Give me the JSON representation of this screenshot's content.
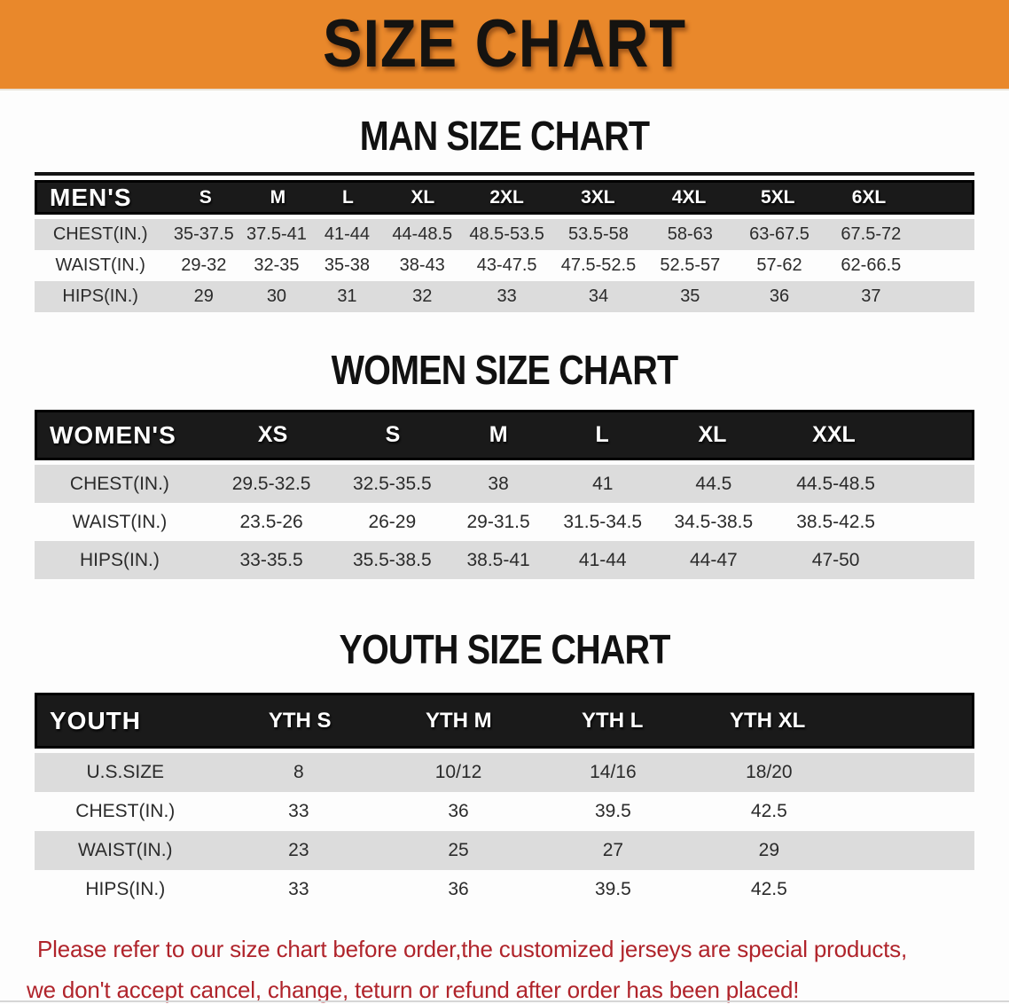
{
  "banner": {
    "title": "SIZE CHART"
  },
  "colors": {
    "banner_bg": "#E9882B",
    "header_bg": "#1a1a1a",
    "row_gray": "#dcdcdc",
    "disclaimer_red": "#b0242b"
  },
  "tables": [
    {
      "heading": "MAN SIZE CHART",
      "header_label": "MEN'S",
      "columns": [
        "S",
        "M",
        "L",
        "XL",
        "2XL",
        "3XL",
        "4XL",
        "5XL",
        "6XL"
      ],
      "rows": [
        {
          "label": "CHEST(IN.)",
          "values": [
            "35-37.5",
            "37.5-41",
            "41-44",
            "44-48.5",
            "48.5-53.5",
            "53.5-58",
            "58-63",
            "63-67.5",
            "67.5-72"
          ]
        },
        {
          "label": "WAIST(IN.)",
          "values": [
            "29-32",
            "32-35",
            "35-38",
            "38-43",
            "43-47.5",
            "47.5-52.5",
            "52.5-57",
            "57-62",
            "62-66.5"
          ]
        },
        {
          "label": "HIPS(IN.)",
          "values": [
            "29",
            "30",
            "31",
            "32",
            "33",
            "34",
            "35",
            "36",
            "37"
          ]
        }
      ]
    },
    {
      "heading": "WOMEN SIZE CHART",
      "header_label": "WOMEN'S",
      "columns": [
        "XS",
        "S",
        "M",
        "L",
        "XL",
        "XXL"
      ],
      "rows": [
        {
          "label": "CHEST(IN.)",
          "values": [
            "29.5-32.5",
            "32.5-35.5",
            "38",
            "41",
            "44.5",
            "44.5-48.5"
          ]
        },
        {
          "label": "WAIST(IN.)",
          "values": [
            "23.5-26",
            "26-29",
            "29-31.5",
            "31.5-34.5",
            "34.5-38.5",
            "38.5-42.5"
          ]
        },
        {
          "label": "HIPS(IN.)",
          "values": [
            "33-35.5",
            "35.5-38.5",
            "38.5-41",
            "41-44",
            "44-47",
            "47-50"
          ]
        }
      ]
    },
    {
      "heading": "YOUTH SIZE CHART",
      "header_label": "YOUTH",
      "columns": [
        "YTH S",
        "YTH M",
        "YTH L",
        "YTH XL"
      ],
      "rows": [
        {
          "label": "U.S.SIZE",
          "values": [
            "8",
            "10/12",
            "14/16",
            "18/20"
          ]
        },
        {
          "label": "CHEST(IN.)",
          "values": [
            "33",
            "36",
            "39.5",
            "42.5"
          ]
        },
        {
          "label": "WAIST(IN.)",
          "values": [
            "23",
            "25",
            "27",
            "29"
          ]
        },
        {
          "label": "HIPS(IN.)",
          "values": [
            "33",
            "36",
            "39.5",
            "42.5"
          ]
        }
      ]
    }
  ],
  "disclaimer": {
    "line1": "Please refer to our size chart before order,the customized jerseys are special products,",
    "line2": "we don't accept cancel, change, teturn or refund after order has been placed!"
  }
}
